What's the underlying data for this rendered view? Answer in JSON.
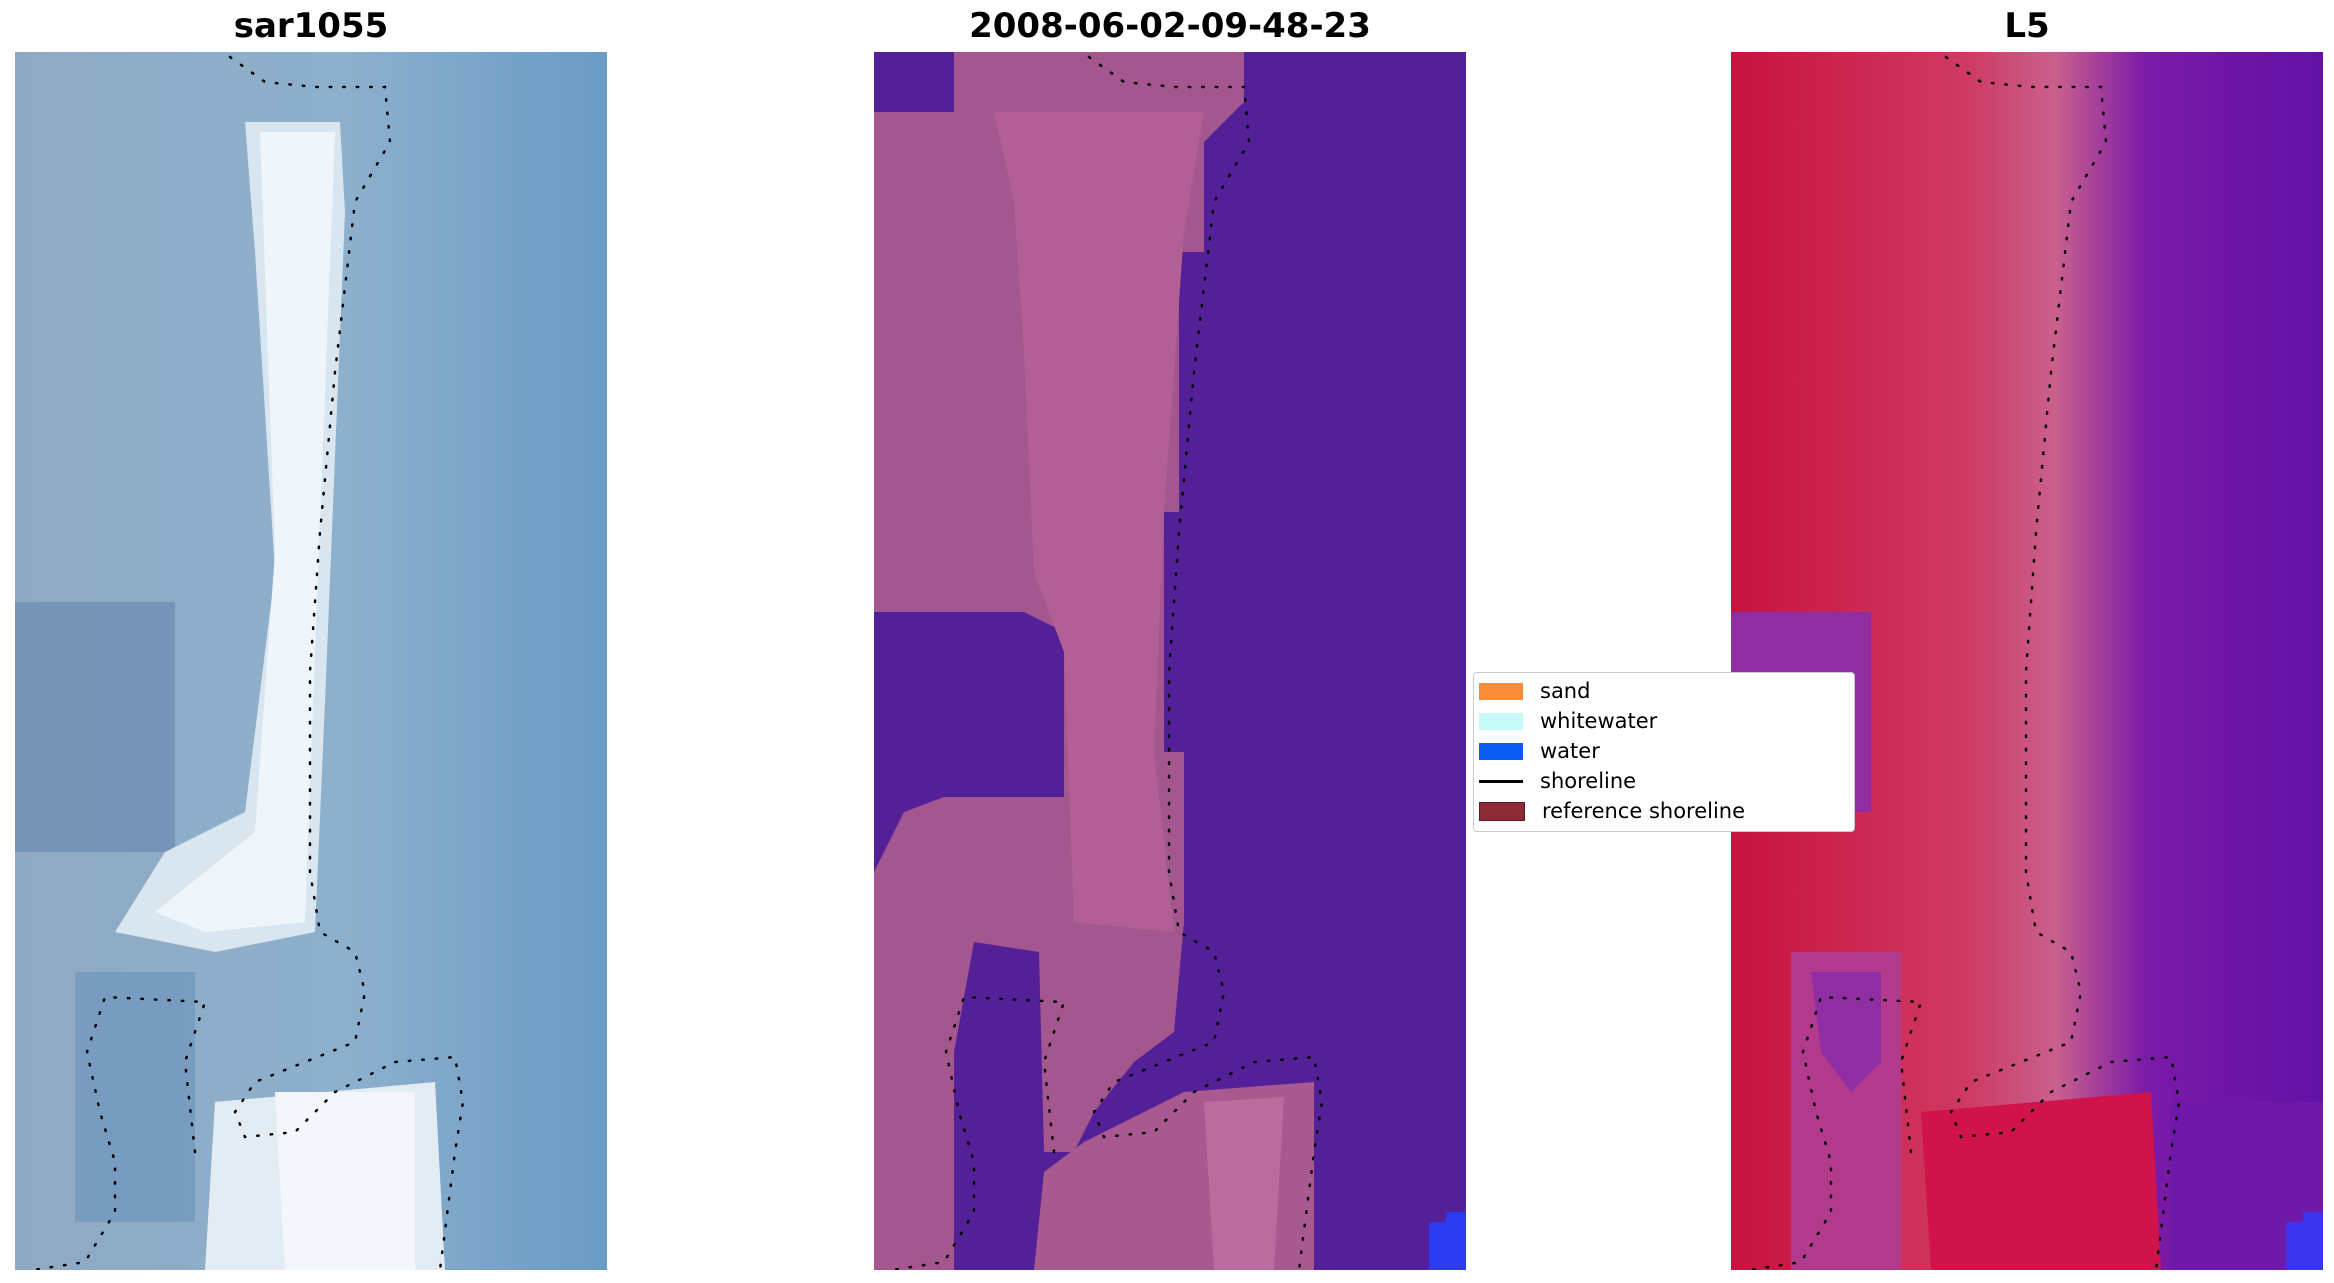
{
  "panels": [
    {
      "title": "sar1055"
    },
    {
      "title": "2008-06-02-09-48-23"
    },
    {
      "title": "L5"
    }
  ],
  "legend": {
    "items": [
      {
        "label": "sand",
        "color": "#f98c3a",
        "kind": "patch"
      },
      {
        "label": "whitewater",
        "color": "#c8fafa",
        "kind": "patch"
      },
      {
        "label": "water",
        "color": "#0a5cf5",
        "kind": "patch"
      },
      {
        "label": "shoreline",
        "color": "#000000",
        "kind": "line"
      },
      {
        "label": "reference shoreline",
        "color": "#8b2b35",
        "kind": "patch"
      }
    ]
  },
  "colors": {
    "rgb_water": "#6f9bc4",
    "rgb_land": "#9fb6c9",
    "rgb_white": "#eef6fb",
    "class_land": "#a3578e",
    "class_water": "#542097",
    "class_corner": "#2b3bf2",
    "mndwi_high": "#c8123f",
    "mndwi_low": "#6212a6",
    "mndwi_mid": "#c9608e"
  }
}
